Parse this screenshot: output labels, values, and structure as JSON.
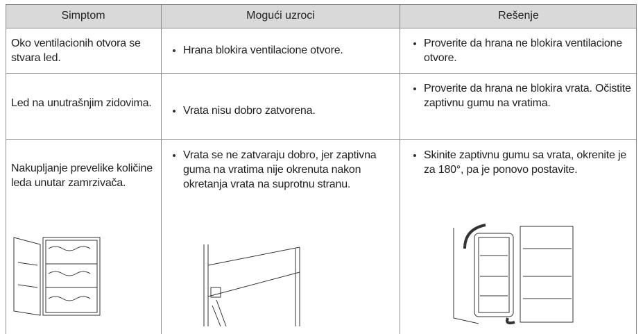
{
  "table": {
    "header": [
      "Simptom",
      "Mogući uzroci",
      "Rešenje"
    ],
    "rows": [
      {
        "symptom": "Oko ventilacionih otvora se stvara led.",
        "causes": [
          "Hrana blokira ventilacione otvore."
        ],
        "solutions": [
          "Proverite da hrana ne blokira ventilacione otvore."
        ]
      },
      {
        "symptom": "Led na unutrašnjim zidovima.",
        "causes": [
          "Vrata nisu dobro zatvorena."
        ],
        "solutions": [
          "Proverite da hrana ne blokira vrata. Očistite zaptivnu gumu na vratima."
        ]
      },
      {
        "symptom": "Nakupljanje prevelike količine leda unutar zamrzivača.",
        "causes": [
          "Vrata se ne zatvaraju dobro, jer zaptivna guma na vratima nije okrenuta nakon okretanja vrata na suprotnu stranu."
        ],
        "solutions": [
          "Skinite zaptivnu gumu sa vrata, okrenite je za 180°, pa je ponovo postavite."
        ]
      }
    ]
  }
}
